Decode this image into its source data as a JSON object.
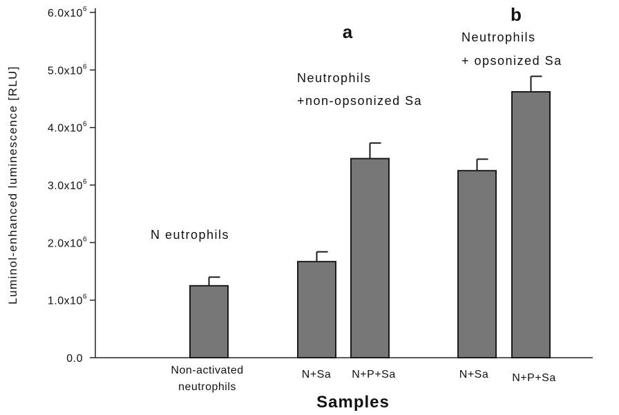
{
  "chart_data": {
    "type": "bar",
    "xlabel": "Samples",
    "ylabel": "Luminol-enhanced luminescence [RLU]",
    "ylim": [
      0,
      6000000
    ],
    "yticks": [
      {
        "value": 0,
        "label": "0.0",
        "exp": ""
      },
      {
        "value": 1000000,
        "label": "1.0x10",
        "exp": "6"
      },
      {
        "value": 2000000,
        "label": "2.0x10",
        "exp": "6"
      },
      {
        "value": 3000000,
        "label": "3.0x10",
        "exp": "6"
      },
      {
        "value": 4000000,
        "label": "4.0x10",
        "exp": "6"
      },
      {
        "value": 5000000,
        "label": "5.0x10",
        "exp": "6"
      },
      {
        "value": 6000000,
        "label": "6.0x10",
        "exp": "6"
      }
    ],
    "bars": [
      {
        "category": [
          "Non-activated",
          "neutrophils"
        ],
        "value": 1250000,
        "error": 150000
      },
      {
        "category": [
          "N+Sa"
        ],
        "value": 1670000,
        "error": 170000
      },
      {
        "category": [
          "N+P+Sa"
        ],
        "value": 3460000,
        "error": 270000
      },
      {
        "category": [
          "N+Sa"
        ],
        "value": 3250000,
        "error": 200000
      },
      {
        "category": [
          "N+P+Sa"
        ],
        "value": 4620000,
        "error": 270000
      }
    ],
    "bar_color": "#777777",
    "annotations": [
      {
        "lines": [
          "N eutrophils"
        ]
      },
      {
        "lines": [
          "Neutrophils",
          "+non-opsonized Sa"
        ]
      },
      {
        "lines": [
          "Neutrophils",
          "+ opsonized Sa"
        ]
      }
    ],
    "panels": [
      "a",
      "b"
    ]
  }
}
